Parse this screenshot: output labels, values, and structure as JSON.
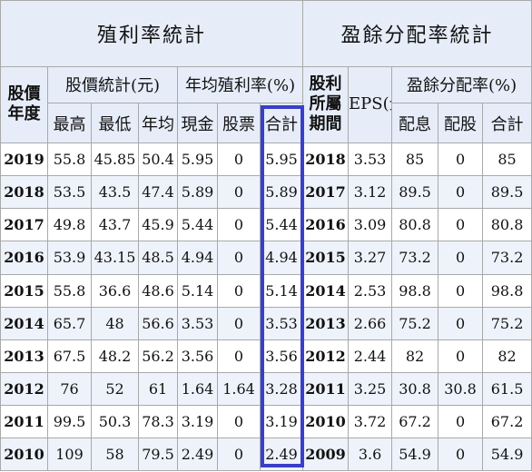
{
  "colors": {
    "header_bg": "#e6edf9",
    "row_alt_bg": "#eef2fa",
    "highlight": "#3a3fc9"
  },
  "headers": {
    "dividend_stats": "殖利率統計",
    "payout_stats": "盈餘分配率統計",
    "price_year": "股價年度",
    "price_stats": "股價統計(元)",
    "avg_yield": "年均殖利率(%)",
    "dividend_period": "股利所屬期間",
    "eps": "EPS(元)",
    "payout_ratio": "盈餘分配率(%)",
    "high": "最高",
    "low": "最低",
    "avg": "年均",
    "cash": "現金",
    "stock": "股票",
    "total": "合計",
    "payout_cash": "配息",
    "payout_stock": "配股",
    "payout_total": "合計"
  },
  "rows": [
    {
      "year": "2019",
      "high": "55.8",
      "low": "45.85",
      "avg": "50.4",
      "cash": "5.95",
      "stock": "0",
      "total": "5.95",
      "period": "2018",
      "eps": "3.53",
      "p_cash": "85",
      "p_stock": "0",
      "p_total": "85"
    },
    {
      "year": "2018",
      "high": "53.5",
      "low": "43.5",
      "avg": "47.4",
      "cash": "5.89",
      "stock": "0",
      "total": "5.89",
      "period": "2017",
      "eps": "3.12",
      "p_cash": "89.5",
      "p_stock": "0",
      "p_total": "89.5"
    },
    {
      "year": "2017",
      "high": "49.8",
      "low": "43.7",
      "avg": "45.9",
      "cash": "5.44",
      "stock": "0",
      "total": "5.44",
      "period": "2016",
      "eps": "3.09",
      "p_cash": "80.8",
      "p_stock": "0",
      "p_total": "80.8"
    },
    {
      "year": "2016",
      "high": "53.9",
      "low": "43.15",
      "avg": "48.5",
      "cash": "4.94",
      "stock": "0",
      "total": "4.94",
      "period": "2015",
      "eps": "3.27",
      "p_cash": "73.2",
      "p_stock": "0",
      "p_total": "73.2"
    },
    {
      "year": "2015",
      "high": "55.8",
      "low": "36.6",
      "avg": "48.6",
      "cash": "5.14",
      "stock": "0",
      "total": "5.14",
      "period": "2014",
      "eps": "2.53",
      "p_cash": "98.8",
      "p_stock": "0",
      "p_total": "98.8"
    },
    {
      "year": "2014",
      "high": "65.7",
      "low": "48",
      "avg": "56.6",
      "cash": "3.53",
      "stock": "0",
      "total": "3.53",
      "period": "2013",
      "eps": "2.66",
      "p_cash": "75.2",
      "p_stock": "0",
      "p_total": "75.2"
    },
    {
      "year": "2013",
      "high": "67.5",
      "low": "48.2",
      "avg": "56.2",
      "cash": "3.56",
      "stock": "0",
      "total": "3.56",
      "period": "2012",
      "eps": "2.44",
      "p_cash": "82",
      "p_stock": "0",
      "p_total": "82"
    },
    {
      "year": "2012",
      "high": "76",
      "low": "52",
      "avg": "61",
      "cash": "1.64",
      "stock": "1.64",
      "total": "3.28",
      "period": "2011",
      "eps": "3.25",
      "p_cash": "30.8",
      "p_stock": "30.8",
      "p_total": "61.5"
    },
    {
      "year": "2011",
      "high": "99.5",
      "low": "50.3",
      "avg": "78.3",
      "cash": "3.19",
      "stock": "0",
      "total": "3.19",
      "period": "2010",
      "eps": "3.72",
      "p_cash": "67.2",
      "p_stock": "0",
      "p_total": "67.2"
    },
    {
      "year": "2010",
      "high": "109",
      "low": "58",
      "avg": "79.5",
      "cash": "2.49",
      "stock": "0",
      "total": "2.49",
      "period": "2009",
      "eps": "3.6",
      "p_cash": "54.9",
      "p_stock": "0",
      "p_total": "54.9"
    }
  ]
}
